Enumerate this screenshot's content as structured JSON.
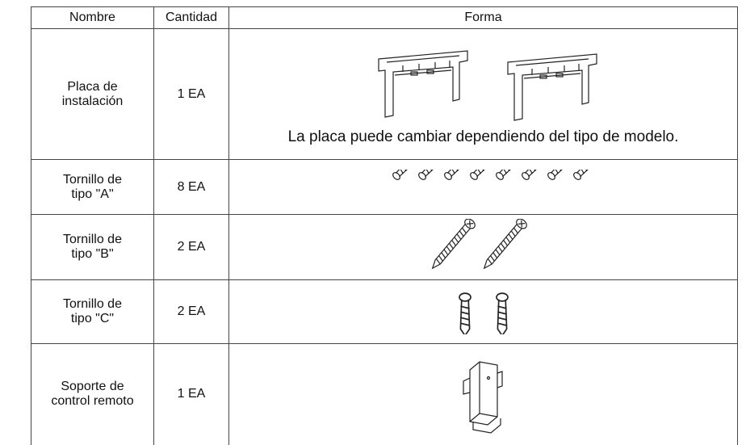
{
  "table": {
    "header": [
      "Nombre",
      "Cantidad",
      "Forma"
    ],
    "rows": [
      {
        "name": [
          "Placa de",
          "instalación"
        ],
        "quantity": "1 EA",
        "note": "La placa puede cambiar dependiendo del tipo de modelo."
      },
      {
        "name": [
          "Tornillo de",
          "tipo \"A\""
        ],
        "quantity": "8 EA"
      },
      {
        "name": [
          "Tornillo de",
          "tipo \"B\""
        ],
        "quantity": "2 EA"
      },
      {
        "name": [
          "Tornillo de",
          "tipo \"C\""
        ],
        "quantity": "2 EA"
      },
      {
        "name": [
          "Soporte de",
          "control remoto"
        ],
        "quantity": "1 EA"
      }
    ]
  }
}
